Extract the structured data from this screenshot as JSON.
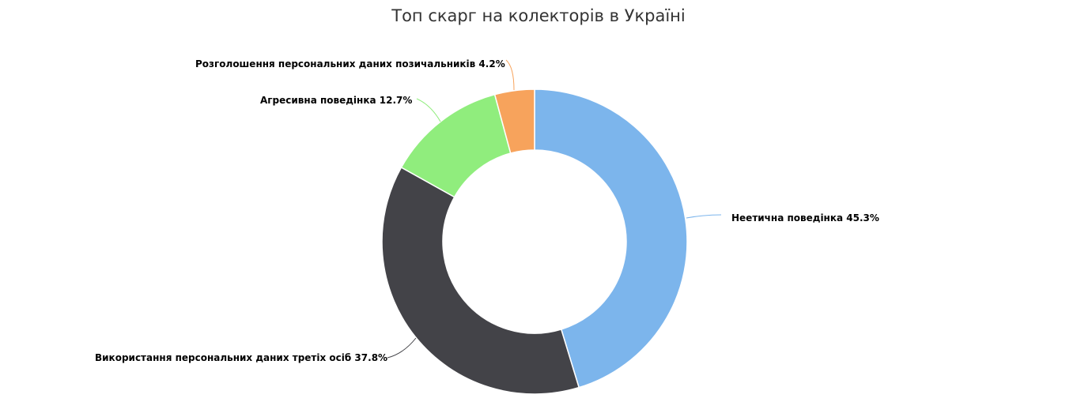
{
  "chart_data": {
    "type": "pie",
    "variant": "donut",
    "title": "Топ скарг на колекторів в Україні",
    "categories": [
      "Неетична поведінка",
      "Використання персональних даних третіх осіб",
      "Агресивна поведінка",
      "Розголошення персональних даних позичальників"
    ],
    "values": [
      45.3,
      37.8,
      12.7,
      4.2
    ],
    "colors": [
      "#7cb5ec",
      "#434348",
      "#90ed7d",
      "#f7a35c"
    ],
    "unit": "%",
    "legend": "none (data labels with connectors)"
  },
  "labels": [
    "Неетична поведінка 45.3%",
    "Використання персональних даних третіх осіб 37.8%",
    "Агресивна поведінка 12.7%",
    "Розголошення персональних даних позичальників 4.2%"
  ]
}
